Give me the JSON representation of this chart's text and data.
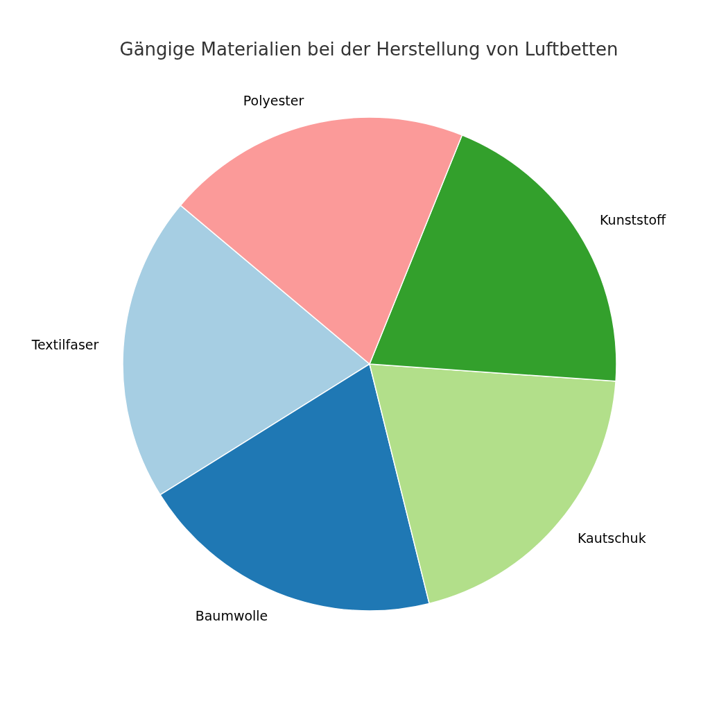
{
  "chart_data": {
    "type": "pie",
    "title": "Gängige Materialien bei der Herstellung von Luftbetten",
    "categories": [
      "Textilfaser",
      "Baumwolle",
      "Kautschuk",
      "Kunststoff",
      "Polyester"
    ],
    "values": [
      20,
      20,
      20,
      20,
      20
    ],
    "colors": [
      "#a6cee3",
      "#1f78b4",
      "#b2df8a",
      "#33a02c",
      "#fb9a99"
    ]
  }
}
